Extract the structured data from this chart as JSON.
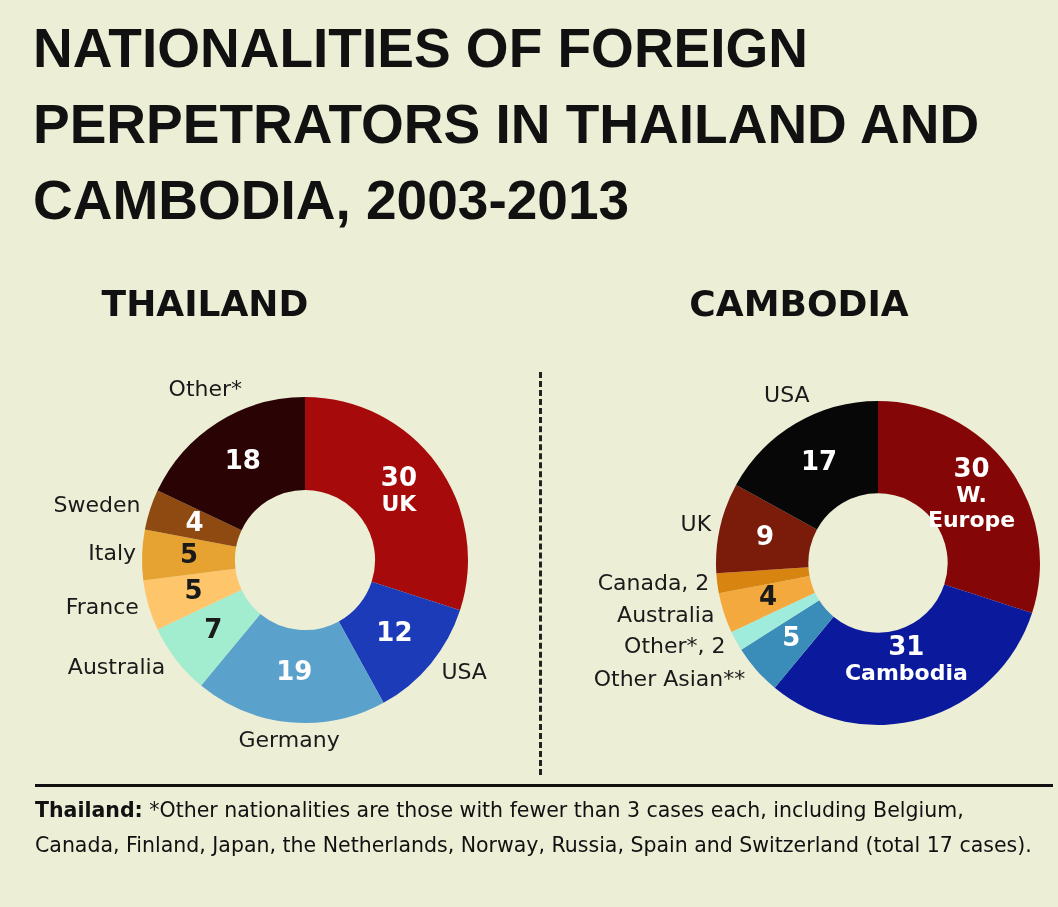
{
  "chart_data": [
    {
      "type": "donut",
      "title": "NATIONALITIES OF FOREIGN PERPETRATORS IN THAILAND AND CAMBODIA, 2003-2013",
      "subtitle": "THAILAND",
      "categories": [
        "UK",
        "USA",
        "Germany",
        "Australia",
        "France",
        "Italy",
        "Sweden",
        "Other*"
      ],
      "values": [
        30,
        12,
        19,
        7,
        5,
        5,
        4,
        18
      ],
      "colors": [
        "#a60a0a",
        "#1c3bb8",
        "#5aa2cb",
        "#a2eccf",
        "#fec56a",
        "#e6a332",
        "#8e4a10",
        "#2a0305"
      ],
      "data_labels": true,
      "annotations": [
        "Thailand: *Other nationalities are those with fewer than 3 cases each, including Belgium, Canada, Finland, Japan, the Netherlands, Norway, Russia, Spain and Switzerland (total 17 cases)."
      ]
    },
    {
      "type": "donut",
      "subtitle": "CAMBODIA",
      "categories": [
        "W. Europe",
        "Cambodia",
        "Other Asian**",
        "Other*, 2",
        "Australia",
        "Canada, 2",
        "UK",
        "USA"
      ],
      "values": [
        30,
        31,
        5,
        2,
        4,
        2,
        9,
        17
      ],
      "colors": [
        "#850607",
        "#0b1a9c",
        "#3a8db8",
        "#a0ecdc",
        "#f4a93e",
        "#d88410",
        "#7b1b0a",
        "#070707"
      ],
      "value_labels": [
        "30",
        "31",
        "5",
        null,
        "4",
        null,
        "9",
        "17"
      ]
    }
  ]
}
